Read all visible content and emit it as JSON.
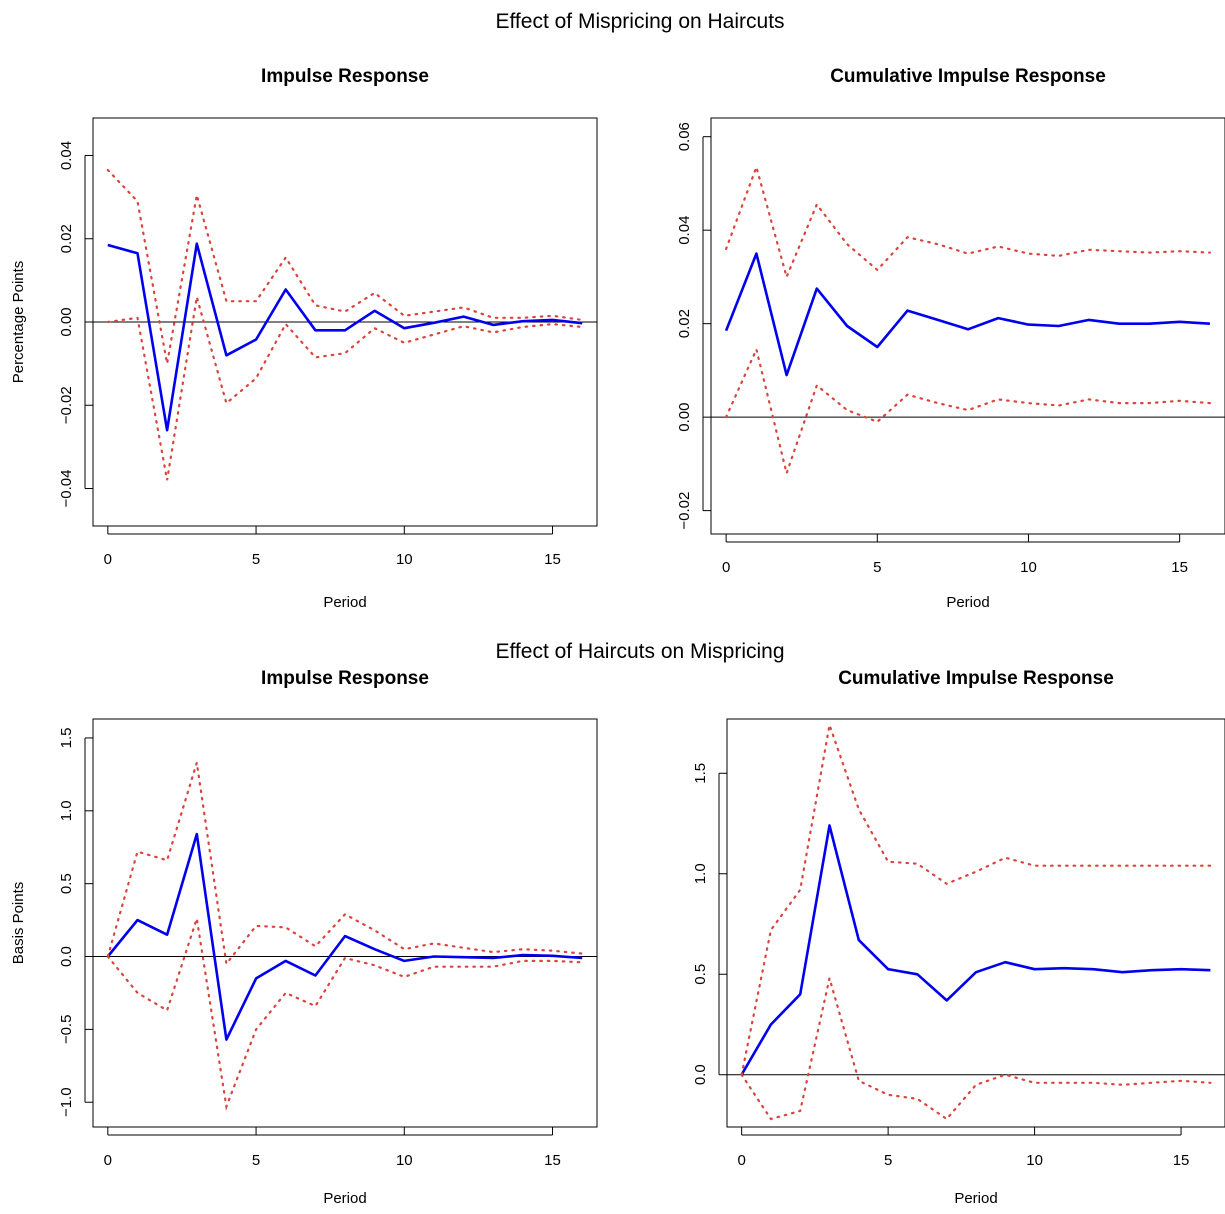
{
  "section_titles": [
    "Effect of Mispricing on Haircuts",
    "Effect of Haircuts on Mispricing"
  ],
  "colors": {
    "response": "#0000ee",
    "band": "#d9443d",
    "axis": "#000000"
  },
  "chart_data": [
    {
      "type": "line",
      "title": "Impulse Response",
      "xlabel": "Period",
      "ylabel": "Percentage Points",
      "xlim": [
        -0.5,
        16.5
      ],
      "ylim": [
        -0.049,
        0.049
      ],
      "xticks": [
        0,
        5,
        10,
        15
      ],
      "xtick_labels": [
        "0",
        "5",
        "10",
        "15"
      ],
      "yticks": [
        -0.04,
        -0.02,
        0.0,
        0.02,
        0.04
      ],
      "ytick_labels": [
        "−0.04",
        "−0.02",
        "0.00",
        "0.02",
        "0.04"
      ],
      "zero_line": true,
      "x": [
        0,
        1,
        2,
        3,
        4,
        5,
        6,
        7,
        8,
        9,
        10,
        11,
        12,
        13,
        14,
        15,
        16
      ],
      "series": [
        {
          "role": "response",
          "values": [
            0.0185,
            0.0165,
            -0.026,
            0.0188,
            -0.008,
            -0.0042,
            0.0078,
            -0.002,
            -0.002,
            0.0027,
            -0.0015,
            -0.0002,
            0.0013,
            -0.0007,
            0.0002,
            0.0005,
            -0.0003
          ]
        },
        {
          "role": "upper",
          "values": [
            0.0365,
            0.029,
            -0.01,
            0.0305,
            0.005,
            0.005,
            0.0155,
            0.004,
            0.0025,
            0.007,
            0.0015,
            0.0025,
            0.0035,
            0.001,
            0.001,
            0.0015,
            0.0005
          ]
        },
        {
          "role": "lower",
          "values": [
            0.0,
            0.001,
            -0.038,
            0.006,
            -0.0195,
            -0.0135,
            -0.0005,
            -0.0085,
            -0.0075,
            -0.0015,
            -0.005,
            -0.003,
            -0.001,
            -0.0025,
            -0.0012,
            -0.0005,
            -0.0012
          ]
        }
      ]
    },
    {
      "type": "line",
      "title": "Cumulative Impulse Response",
      "xlabel": "Period",
      "ylabel": "",
      "xlim": [
        -0.5,
        16.5
      ],
      "ylim": [
        -0.025,
        0.064
      ],
      "xticks": [
        0,
        5,
        10,
        15
      ],
      "xtick_labels": [
        "0",
        "5",
        "10",
        "15"
      ],
      "yticks": [
        -0.02,
        0.0,
        0.02,
        0.04,
        0.06
      ],
      "ytick_labels": [
        "−0.02",
        "0.00",
        "0.02",
        "0.04",
        "0.06"
      ],
      "zero_line": true,
      "x": [
        0,
        1,
        2,
        3,
        4,
        5,
        6,
        7,
        8,
        9,
        10,
        11,
        12,
        13,
        14,
        15,
        16
      ],
      "series": [
        {
          "role": "response",
          "values": [
            0.0185,
            0.035,
            0.009,
            0.0275,
            0.0195,
            0.015,
            0.0228,
            0.0208,
            0.0188,
            0.0212,
            0.0198,
            0.0195,
            0.0208,
            0.02,
            0.02,
            0.0204,
            0.02
          ]
        },
        {
          "role": "upper",
          "values": [
            0.036,
            0.0535,
            0.03,
            0.0455,
            0.037,
            0.0315,
            0.0385,
            0.037,
            0.035,
            0.0365,
            0.035,
            0.0345,
            0.0358,
            0.0355,
            0.0352,
            0.0355,
            0.0352
          ]
        },
        {
          "role": "lower",
          "values": [
            0.0,
            0.0145,
            -0.012,
            0.0068,
            0.0015,
            -0.001,
            0.0048,
            0.003,
            0.0015,
            0.0038,
            0.003,
            0.0025,
            0.0038,
            0.003,
            0.003,
            0.0035,
            0.003
          ]
        }
      ]
    },
    {
      "type": "line",
      "title": "Impulse Response",
      "xlabel": "Period",
      "ylabel": "Basis Points",
      "xlim": [
        -0.5,
        16.5
      ],
      "ylim": [
        -1.17,
        1.63
      ],
      "xticks": [
        0,
        5,
        10,
        15
      ],
      "xtick_labels": [
        "0",
        "5",
        "10",
        "15"
      ],
      "yticks": [
        -1.0,
        -0.5,
        0.0,
        0.5,
        1.0,
        1.5
      ],
      "ytick_labels": [
        "−1.0",
        "−0.5",
        "0.0",
        "0.5",
        "1.0",
        "1.5"
      ],
      "zero_line": true,
      "x": [
        0,
        1,
        2,
        3,
        4,
        5,
        6,
        7,
        8,
        9,
        10,
        11,
        12,
        13,
        14,
        15,
        16
      ],
      "series": [
        {
          "role": "response",
          "values": [
            0.0,
            0.25,
            0.15,
            0.84,
            -0.57,
            -0.15,
            -0.03,
            -0.13,
            0.14,
            0.05,
            -0.03,
            0.0,
            -0.005,
            -0.01,
            0.01,
            0.005,
            -0.01
          ]
        },
        {
          "role": "upper",
          "values": [
            0.0,
            0.72,
            0.66,
            1.33,
            -0.05,
            0.21,
            0.2,
            0.07,
            0.29,
            0.18,
            0.05,
            0.09,
            0.06,
            0.03,
            0.05,
            0.04,
            0.02
          ]
        },
        {
          "role": "lower",
          "values": [
            0.0,
            -0.25,
            -0.37,
            0.26,
            -1.03,
            -0.5,
            -0.25,
            -0.34,
            -0.01,
            -0.06,
            -0.14,
            -0.07,
            -0.07,
            -0.07,
            -0.03,
            -0.03,
            -0.04
          ]
        }
      ]
    },
    {
      "type": "line",
      "title": "Cumulative Impulse Response",
      "xlabel": "Period",
      "ylabel": "",
      "xlim": [
        -0.5,
        16.5
      ],
      "ylim": [
        -0.26,
        1.77
      ],
      "xticks": [
        0,
        5,
        10,
        15
      ],
      "xtick_labels": [
        "0",
        "5",
        "10",
        "15"
      ],
      "yticks": [
        0.0,
        0.5,
        1.0,
        1.5
      ],
      "ytick_labels": [
        "0.0",
        "0.5",
        "1.0",
        "1.5"
      ],
      "zero_line": true,
      "x": [
        0,
        1,
        2,
        3,
        4,
        5,
        6,
        7,
        8,
        9,
        10,
        11,
        12,
        13,
        14,
        15,
        16
      ],
      "series": [
        {
          "role": "response",
          "values": [
            0.0,
            0.25,
            0.4,
            1.24,
            0.67,
            0.525,
            0.5,
            0.37,
            0.51,
            0.56,
            0.525,
            0.53,
            0.525,
            0.51,
            0.52,
            0.525,
            0.52
          ]
        },
        {
          "role": "upper",
          "values": [
            0.0,
            0.72,
            0.92,
            1.74,
            1.32,
            1.06,
            1.05,
            0.95,
            1.01,
            1.08,
            1.04,
            1.04,
            1.04,
            1.04,
            1.04,
            1.04,
            1.04
          ]
        },
        {
          "role": "lower",
          "values": [
            0.0,
            -0.22,
            -0.18,
            0.48,
            -0.03,
            -0.1,
            -0.12,
            -0.22,
            -0.05,
            0.0,
            -0.04,
            -0.04,
            -0.04,
            -0.05,
            -0.04,
            -0.03,
            -0.04
          ]
        }
      ]
    }
  ]
}
